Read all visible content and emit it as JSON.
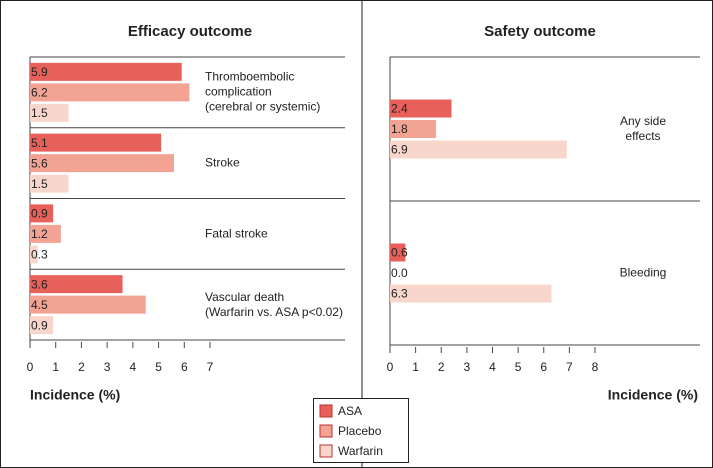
{
  "chart_data": [
    {
      "type": "bar",
      "orientation": "horizontal",
      "title": "Efficacy outcome",
      "categories": [
        "Thromboembolic\ncomplication\n(cerebral or systemic)",
        "Stroke",
        "Fatal stroke",
        "Vascular death\n(Warfarin vs. ASA p<0.02)"
      ],
      "series": [
        {
          "name": "ASA",
          "color": "#e8605a",
          "values": [
            5.9,
            5.1,
            0.9,
            3.6
          ]
        },
        {
          "name": "Placebo",
          "color": "#f2a393",
          "values": [
            6.2,
            5.6,
            1.2,
            4.5
          ]
        },
        {
          "name": "Warfarin",
          "color": "#f9d6cb",
          "values": [
            1.5,
            1.5,
            0.3,
            0.9
          ]
        }
      ],
      "xlim": [
        0,
        7
      ],
      "xticks": [
        0,
        1,
        2,
        3,
        4,
        5,
        6,
        7
      ],
      "xlabel": "Incidence (%)"
    },
    {
      "type": "bar",
      "orientation": "horizontal",
      "title": "Safety outcome",
      "categories": [
        "Any side effects",
        "Bleeding"
      ],
      "series": [
        {
          "name": "ASA",
          "color": "#e8605a",
          "values": [
            2.4,
            0.6
          ]
        },
        {
          "name": "Placebo",
          "color": "#f2a393",
          "values": [
            1.8,
            0
          ],
          "value_labels": [
            "1.8",
            "0.0"
          ]
        },
        {
          "name": "Warfarin",
          "color": "#f9d6cb",
          "values": [
            6.9,
            6.3
          ]
        }
      ],
      "xlim": [
        0,
        8
      ],
      "xticks": [
        0,
        1,
        2,
        3,
        4,
        5,
        6,
        7,
        8
      ],
      "xlabel": "Incidence (%)"
    }
  ]
}
